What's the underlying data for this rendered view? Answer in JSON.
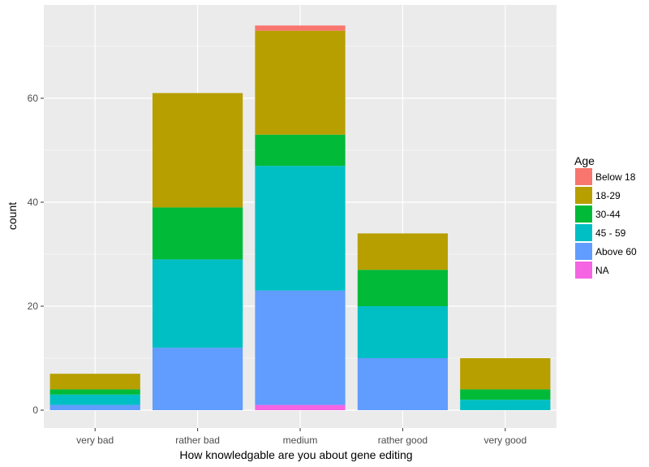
{
  "chart_data": {
    "type": "bar",
    "stacked": true,
    "title": "",
    "xlabel": "How knowledgable are you about gene editing",
    "ylabel": "count",
    "categories": [
      "very bad",
      "rather bad",
      "medium",
      "rather good",
      "very good"
    ],
    "ylim": [
      0,
      78
    ],
    "yticks": [
      0,
      20,
      40,
      60
    ],
    "grid": true,
    "legend_position": "right",
    "legend_title": "Age",
    "series": [
      {
        "name": "Below 18",
        "color": "#F8766D",
        "values": [
          0,
          0,
          1,
          0,
          0
        ]
      },
      {
        "name": "18-29",
        "color": "#B79F00",
        "values": [
          3,
          22,
          20,
          7,
          6
        ]
      },
      {
        "name": "30-44",
        "color": "#00BA38",
        "values": [
          1,
          10,
          6,
          7,
          2
        ]
      },
      {
        "name": "45 - 59",
        "color": "#00BFC4",
        "values": [
          2,
          17,
          24,
          10,
          2
        ]
      },
      {
        "name": "Above 60",
        "color": "#619CFF",
        "values": [
          1,
          12,
          22,
          10,
          0
        ]
      },
      {
        "name": "NA",
        "color": "#F564E3",
        "values": [
          0,
          0,
          1,
          0,
          0
        ]
      }
    ],
    "panel_background": "#EBEBEB",
    "grid_color": "#FFFFFF"
  }
}
